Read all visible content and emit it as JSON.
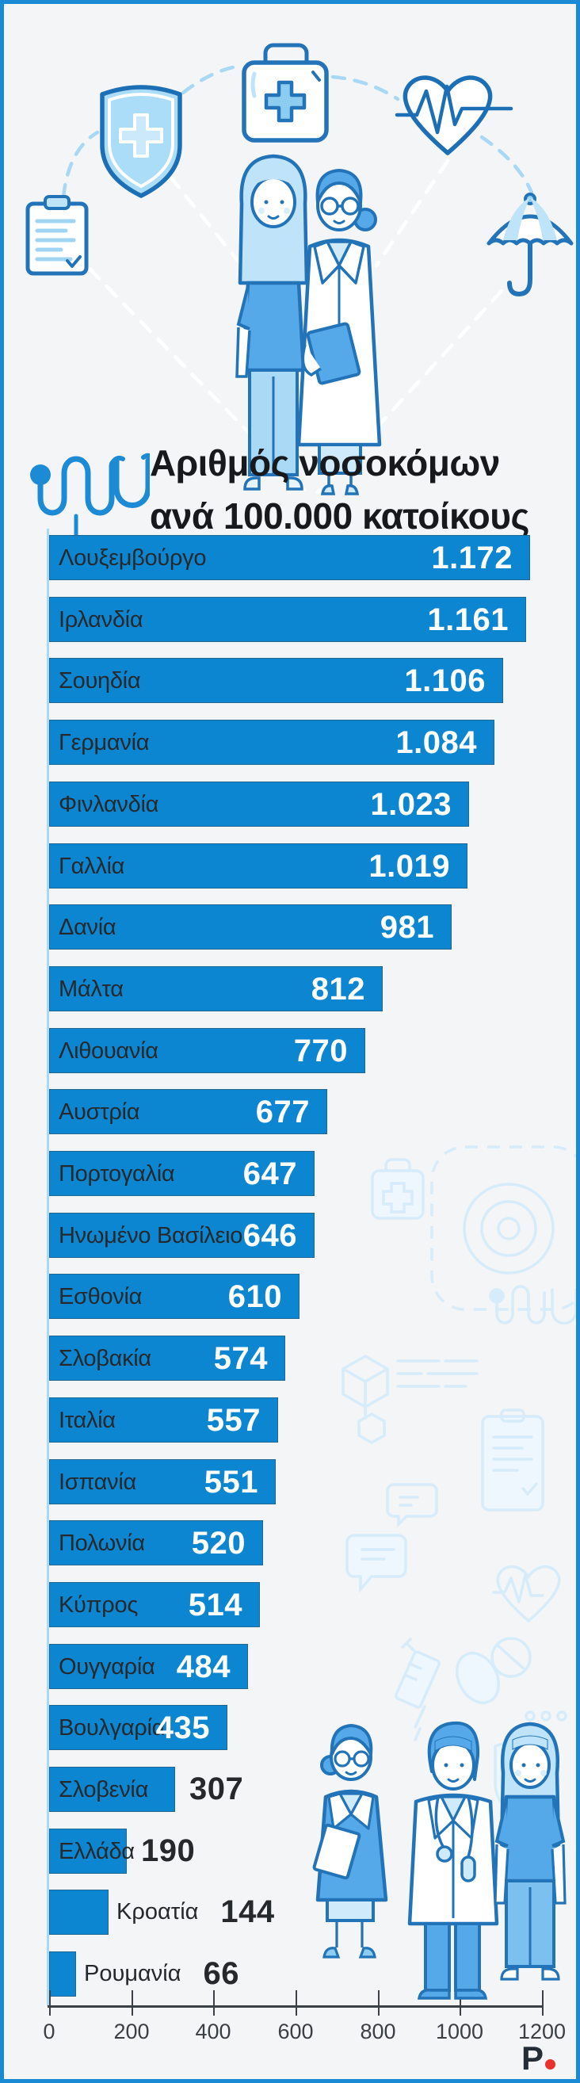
{
  "title": {
    "line1": "Αριθμός νοσοκόμων",
    "line2": "ανά 100.000 κατοίκους"
  },
  "chart_data": {
    "type": "bar",
    "orientation": "horizontal",
    "title": "Αριθμός νοσοκόμων ανά 100.000 κατοίκους",
    "categories": [
      "Λουξεμβούργο",
      "Ιρλανδία",
      "Σουηδία",
      "Γερμανία",
      "Φινλανδία",
      "Γαλλία",
      "Δανία",
      "Μάλτα",
      "Λιθουανία",
      "Αυστρία",
      "Πορτογαλία",
      "Ηνωμένο Βασίλειο",
      "Εσθονία",
      "Σλοβακία",
      "Ιταλία",
      "Ισπανία",
      "Πολωνία",
      "Κύπρος",
      "Ουγγαρία",
      "Βουλγαρία",
      "Σλοβενία",
      "Ελλάδα",
      "Κροατία",
      "Ρουμανία"
    ],
    "values": [
      1172,
      1161,
      1106,
      1084,
      1023,
      1019,
      981,
      812,
      770,
      677,
      647,
      646,
      610,
      574,
      557,
      551,
      520,
      514,
      484,
      435,
      307,
      190,
      144,
      66
    ],
    "display_values": [
      "1.172",
      "1.161",
      "1.106",
      "1.084",
      "1.023",
      "1.019",
      "981",
      "812",
      "770",
      "677",
      "647",
      "646",
      "610",
      "574",
      "557",
      "551",
      "520",
      "514",
      "484",
      "435",
      "307",
      "190",
      "144",
      "66"
    ],
    "xlabel": "",
    "ylabel": "",
    "xlim": [
      0,
      1200
    ],
    "xticks": [
      0,
      200,
      400,
      600,
      800,
      1000,
      1200
    ],
    "grid": false,
    "legend": false,
    "bar_color": "#0d86d2",
    "value_label_inside_color": "#ffffff",
    "value_label_outside_color": "#26292c"
  },
  "header_illustration": {
    "icons": [
      "clipboard-icon",
      "shield-cross-icon",
      "first-aid-kit-icon",
      "heart-ekg-icon",
      "umbrella-icon",
      "nurse-figure",
      "doctor-figure"
    ]
  },
  "title_icon": "stethoscope-icon",
  "watermark_icons": [
    "target-icon",
    "first-aid-kit-icon",
    "stethoscope-icon",
    "cube-icon",
    "text-lines-icon",
    "clipboard-icon",
    "speech-bubble-icon",
    "heart-ekg-icon",
    "syringe-icon",
    "pills-icon",
    "shield-cross-icon"
  ],
  "footer_illustration": {
    "figures": [
      "professional-woman-figure",
      "doctor-figure",
      "nurse-figure"
    ]
  },
  "logo": {
    "text": "P"
  },
  "colors": {
    "frame": "#1b8ad5",
    "background": "#f4f5f6",
    "bar": "#0d86d2",
    "illustration_stroke": "#2273b8",
    "illustration_fill": "#55a9e8",
    "illustration_light": "#bfe3f8",
    "watermark": "#d7ecfa",
    "logo_dot": "#e8322b"
  }
}
